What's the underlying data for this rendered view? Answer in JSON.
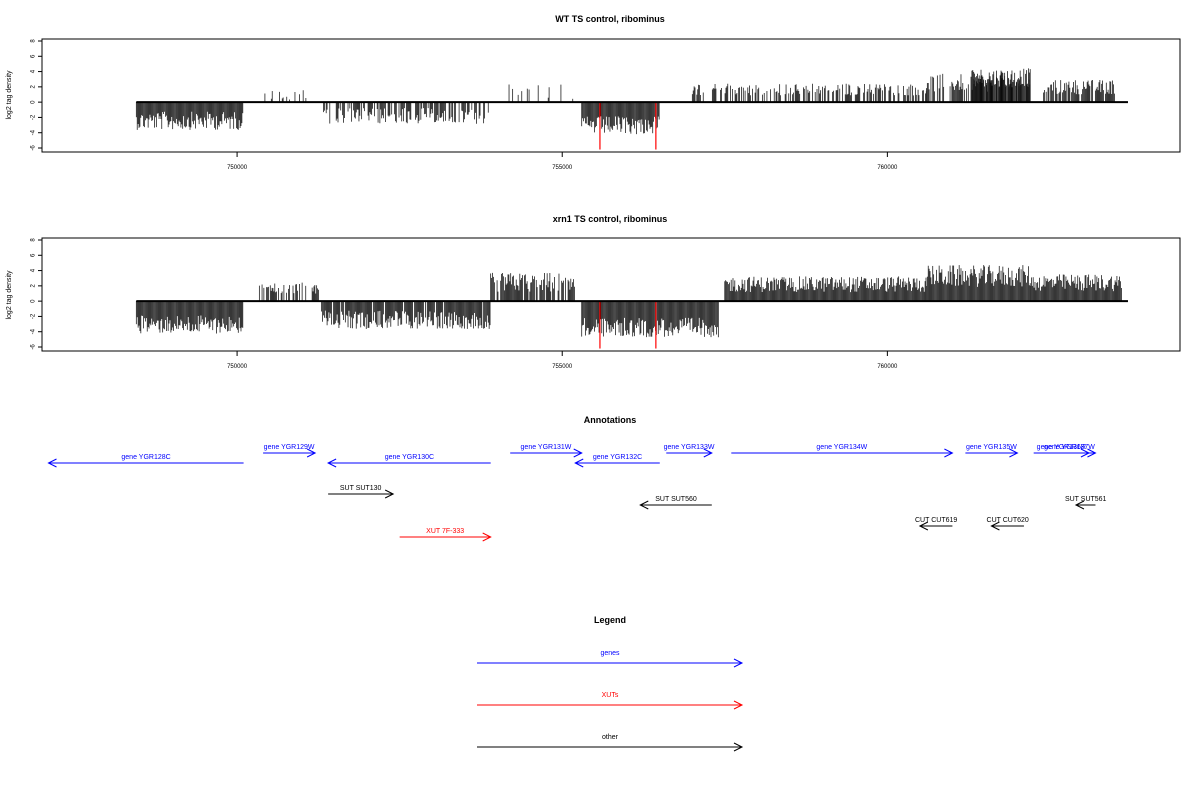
{
  "chart_data": [
    {
      "type": "bar",
      "title": "WT TS control, ribominus",
      "ylabel": "log2 tag density",
      "xlim": [
        747000,
        764500
      ],
      "ylim": [
        -6,
        8
      ],
      "yticks": [
        8,
        6,
        4,
        2,
        0,
        -2,
        -4,
        -6
      ],
      "xticks": [
        750000,
        755000,
        760000
      ],
      "xtick_labels": [
        "750000",
        "755000",
        "760000"
      ],
      "baseline": 0,
      "segments": [
        {
          "x0": 748450,
          "x1": 750100,
          "level": -2.2,
          "spread": 1.5,
          "density": 1.0
        },
        {
          "x0": 750400,
          "x1": 751200,
          "level": 0.8,
          "spread": 0.8,
          "density": 0.25
        },
        {
          "x0": 751300,
          "x1": 753900,
          "level": -1.6,
          "spread": 1.3,
          "density": 0.6
        },
        {
          "x0": 754000,
          "x1": 755200,
          "level": 1.2,
          "spread": 1.2,
          "density": 0.2
        },
        {
          "x0": 755300,
          "x1": 756500,
          "level": -2.8,
          "spread": 1.5,
          "density": 1.0
        },
        {
          "x0": 757000,
          "x1": 760600,
          "level": 1.5,
          "spread": 1.0,
          "density": 0.55
        },
        {
          "x0": 760600,
          "x1": 762200,
          "level": 2.3,
          "spread": 1.5,
          "density": 0.7
        },
        {
          "x0": 761300,
          "x1": 762200,
          "level": 3.0,
          "spread": 1.5,
          "density": 1.0
        },
        {
          "x0": 762400,
          "x1": 763500,
          "level": 1.8,
          "spread": 1.2,
          "density": 0.8
        }
      ],
      "highlights": [
        {
          "x": 755580,
          "value": -6.2,
          "color": "#ff0000"
        },
        {
          "x": 756440,
          "value": -6.2,
          "color": "#ff0000"
        }
      ]
    },
    {
      "type": "bar",
      "title": "xrn1 TS control, ribominus",
      "ylabel": "log2 tag density",
      "xlim": [
        747000,
        764500
      ],
      "ylim": [
        -6,
        8
      ],
      "yticks": [
        8,
        6,
        4,
        2,
        0,
        -2,
        -4,
        -6
      ],
      "xticks": [
        750000,
        755000,
        760000
      ],
      "xtick_labels": [
        "750000",
        "755000",
        "760000"
      ],
      "baseline": 0,
      "segments": [
        {
          "x0": 748450,
          "x1": 750100,
          "level": -2.8,
          "spread": 1.5,
          "density": 1.0
        },
        {
          "x0": 750300,
          "x1": 751300,
          "level": 1.5,
          "spread": 1.0,
          "density": 0.45
        },
        {
          "x0": 751300,
          "x1": 753900,
          "level": -2.2,
          "spread": 1.5,
          "density": 0.95
        },
        {
          "x0": 753900,
          "x1": 755200,
          "level": 2.2,
          "spread": 1.6,
          "density": 0.85
        },
        {
          "x0": 755300,
          "x1": 757400,
          "level": -3.2,
          "spread": 1.6,
          "density": 1.0
        },
        {
          "x0": 757500,
          "x1": 760600,
          "level": 2.0,
          "spread": 1.3,
          "density": 1.0
        },
        {
          "x0": 760600,
          "x1": 762200,
          "level": 3.0,
          "spread": 1.8,
          "density": 1.0
        },
        {
          "x0": 762200,
          "x1": 763600,
          "level": 2.2,
          "spread": 1.4,
          "density": 1.0
        }
      ],
      "highlights": [
        {
          "x": 755580,
          "value": -6.2,
          "color": "#ff0000"
        },
        {
          "x": 756440,
          "value": -6.2,
          "color": "#ff0000"
        }
      ]
    }
  ],
  "annotations": {
    "title": "Annotations",
    "xlim": [
      747000,
      764500
    ],
    "features": [
      {
        "label": "gene YGR128C",
        "x0": 747100,
        "x1": 750100,
        "strand": "-",
        "row": 2,
        "kind": "gene"
      },
      {
        "label": "gene YGR129W",
        "x0": 750400,
        "x1": 751200,
        "strand": "+",
        "row": 1,
        "kind": "gene"
      },
      {
        "label": "gene YGR130C",
        "x0": 751400,
        "x1": 753900,
        "strand": "-",
        "row": 2,
        "kind": "gene"
      },
      {
        "label": "gene YGR131W",
        "x0": 754200,
        "x1": 755300,
        "strand": "+",
        "row": 1,
        "kind": "gene"
      },
      {
        "label": "gene YGR132C",
        "x0": 755200,
        "x1": 756500,
        "strand": "-",
        "row": 2,
        "kind": "gene"
      },
      {
        "label": "gene YGR133W",
        "x0": 756600,
        "x1": 757300,
        "strand": "+",
        "row": 1,
        "kind": "gene"
      },
      {
        "label": "gene YGR134W",
        "x0": 757600,
        "x1": 761000,
        "strand": "+",
        "row": 1,
        "kind": "gene"
      },
      {
        "label": "gene YGR135W",
        "x0": 761200,
        "x1": 762000,
        "strand": "+",
        "row": 1,
        "kind": "gene"
      },
      {
        "label": "gene YGR136R",
        "x0": 762250,
        "x1": 763100,
        "strand": "+",
        "row": 1,
        "kind": "gene"
      },
      {
        "label": "gene YGR137W",
        "x0": 762400,
        "x1": 763200,
        "strand": "+",
        "row": 1,
        "kind": "gene"
      },
      {
        "label": "SUT SUT130",
        "x0": 751400,
        "x1": 752400,
        "strand": "+",
        "row": 3,
        "kind": "other"
      },
      {
        "label": "SUT SUT560",
        "x0": 756200,
        "x1": 757300,
        "strand": "-",
        "row": 4,
        "kind": "other"
      },
      {
        "label": "SUT SUT561",
        "x0": 762900,
        "x1": 763200,
        "strand": "-",
        "row": 4,
        "kind": "other"
      },
      {
        "label": "CUT CUT619",
        "x0": 760500,
        "x1": 761000,
        "strand": "-",
        "row": 5,
        "kind": "other"
      },
      {
        "label": "CUT CUT620",
        "x0": 761600,
        "x1": 762100,
        "strand": "-",
        "row": 5,
        "kind": "other"
      },
      {
        "label": "XUT 7F-333",
        "x0": 752500,
        "x1": 753900,
        "strand": "+",
        "row": 6,
        "kind": "xut"
      }
    ]
  },
  "legend": {
    "title": "Legend",
    "items": [
      {
        "label": "genes",
        "color": "#0000ff"
      },
      {
        "label": "XUTs",
        "color": "#ff0000"
      },
      {
        "label": "other",
        "color": "#000000"
      }
    ]
  },
  "colors": {
    "gene": "#0000ff",
    "xut": "#ff0000",
    "other": "#000000",
    "bars": "#000000"
  }
}
